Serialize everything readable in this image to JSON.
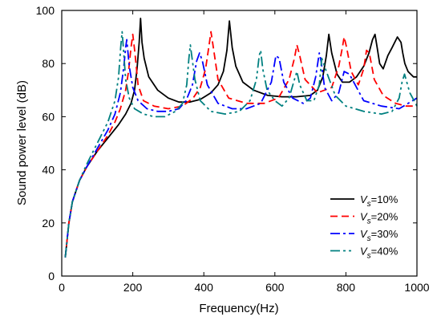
{
  "chart_data": {
    "type": "line",
    "title": "",
    "xlabel": "Frequency(Hz)",
    "ylabel": "Sound power level (dB)",
    "xlim": [
      0,
      1000
    ],
    "ylim": [
      0,
      100
    ],
    "xticks": [
      0,
      200,
      400,
      600,
      800,
      1000
    ],
    "yticks": [
      0,
      20,
      40,
      60,
      80,
      100
    ],
    "grid": false,
    "legend_position": "bottom-right",
    "series": [
      {
        "name": "Vs=10%",
        "legend_main": "V",
        "legend_sub": "s",
        "legend_tail": "=10%",
        "color": "#000000",
        "dash": "solid",
        "x": [
          10,
          20,
          30,
          50,
          70,
          100,
          130,
          160,
          180,
          195,
          205,
          212,
          218,
          222,
          226,
          232,
          245,
          270,
          300,
          330,
          360,
          390,
          420,
          440,
          455,
          465,
          472,
          480,
          490,
          510,
          540,
          580,
          620,
          660,
          700,
          720,
          735,
          745,
          752,
          760,
          775,
          790,
          810,
          830,
          850,
          865,
          875,
          882,
          888,
          895,
          905,
          918,
          930,
          945,
          955,
          960,
          966,
          975,
          990,
          1000
        ],
        "y": [
          7,
          20,
          28,
          36,
          41,
          47,
          52,
          57,
          61,
          65,
          70,
          78,
          88,
          97,
          88,
          82,
          75,
          70,
          67,
          65.5,
          65.5,
          66.5,
          69,
          72,
          77,
          85,
          96,
          86,
          79,
          73,
          70,
          68,
          67.5,
          67.5,
          68,
          70,
          75,
          83,
          91,
          84,
          76,
          73,
          73,
          75,
          79,
          84,
          89,
          91,
          86,
          80,
          78,
          83,
          86,
          90,
          88,
          84,
          80,
          77,
          75,
          75
        ]
      },
      {
        "name": "Vs=20%",
        "legend_main": "V",
        "legend_sub": "s",
        "legend_tail": "=20%",
        "color": "#ff0000",
        "dash": "9,5",
        "x": [
          10,
          20,
          30,
          50,
          70,
          100,
          130,
          150,
          165,
          180,
          188,
          195,
          200,
          206,
          215,
          230,
          260,
          300,
          340,
          370,
          390,
          405,
          415,
          420,
          428,
          440,
          470,
          520,
          570,
          610,
          640,
          655,
          662,
          670,
          685,
          720,
          760,
          780,
          790,
          795,
          802,
          815,
          835,
          850,
          858,
          866,
          880,
          905,
          940,
          970,
          1000
        ],
        "y": [
          7,
          20,
          28,
          36,
          41,
          47,
          53,
          58,
          63,
          70,
          77,
          86,
          91,
          84,
          72,
          66,
          64,
          63,
          64,
          67,
          71,
          78,
          87,
          92,
          85,
          74,
          67,
          65,
          65,
          67,
          74,
          82,
          87,
          83,
          74,
          69,
          71,
          79,
          86,
          90,
          86,
          77,
          72,
          78,
          85,
          84,
          74,
          68,
          65,
          64,
          64
        ]
      },
      {
        "name": "Vs=30%",
        "legend_main": "V",
        "legend_sub": "s",
        "legend_tail": "=30%",
        "color": "#0000ff",
        "dash": "12,4,3,4",
        "x": [
          10,
          20,
          30,
          50,
          70,
          100,
          130,
          150,
          165,
          175,
          180,
          183,
          190,
          200,
          215,
          240,
          270,
          300,
          330,
          350,
          368,
          380,
          388,
          396,
          410,
          440,
          480,
          520,
          560,
          590,
          603,
          612,
          625,
          650,
          680,
          700,
          715,
          725,
          730,
          740,
          760,
          780,
          795,
          810,
          850,
          900,
          950,
          1000
        ],
        "y": [
          7,
          20,
          28,
          36,
          41,
          48,
          55,
          61,
          69,
          79,
          86,
          89,
          79,
          71,
          66,
          63,
          62,
          62,
          63,
          66,
          72,
          81,
          84,
          81,
          72,
          65,
          63,
          63,
          65,
          73,
          83,
          82,
          73,
          67,
          65,
          67,
          75,
          84,
          81,
          71,
          66,
          69,
          77,
          76,
          66,
          64,
          63,
          67
        ]
      },
      {
        "name": "Vs=40%",
        "legend_main": "V",
        "legend_sub": "s",
        "legend_tail": "=40%",
        "color": "#008080",
        "dash": "12,4,3,4,3,4",
        "x": [
          10,
          20,
          30,
          50,
          70,
          100,
          130,
          150,
          160,
          166,
          170,
          174,
          180,
          190,
          205,
          230,
          260,
          290,
          320,
          340,
          352,
          358,
          362,
          366,
          375,
          390,
          420,
          460,
          500,
          530,
          548,
          556,
          560,
          566,
          578,
          600,
          620,
          640,
          655,
          662,
          670,
          690,
          710,
          725,
          732,
          745,
          770,
          800,
          850,
          900,
          930,
          950,
          958,
          965,
          980,
          1000
        ],
        "y": [
          7,
          20,
          28,
          36,
          42,
          50,
          58,
          66,
          75,
          86,
          92,
          85,
          74,
          67,
          63,
          61,
          60,
          60,
          62,
          65,
          72,
          82,
          87,
          83,
          74,
          66,
          62,
          61,
          62,
          66,
          74,
          83,
          85,
          78,
          70,
          66,
          64,
          67,
          74,
          77,
          72,
          66,
          66,
          72,
          82,
          77,
          68,
          64,
          62,
          61,
          62,
          67,
          73,
          76,
          69,
          64
        ]
      }
    ]
  }
}
